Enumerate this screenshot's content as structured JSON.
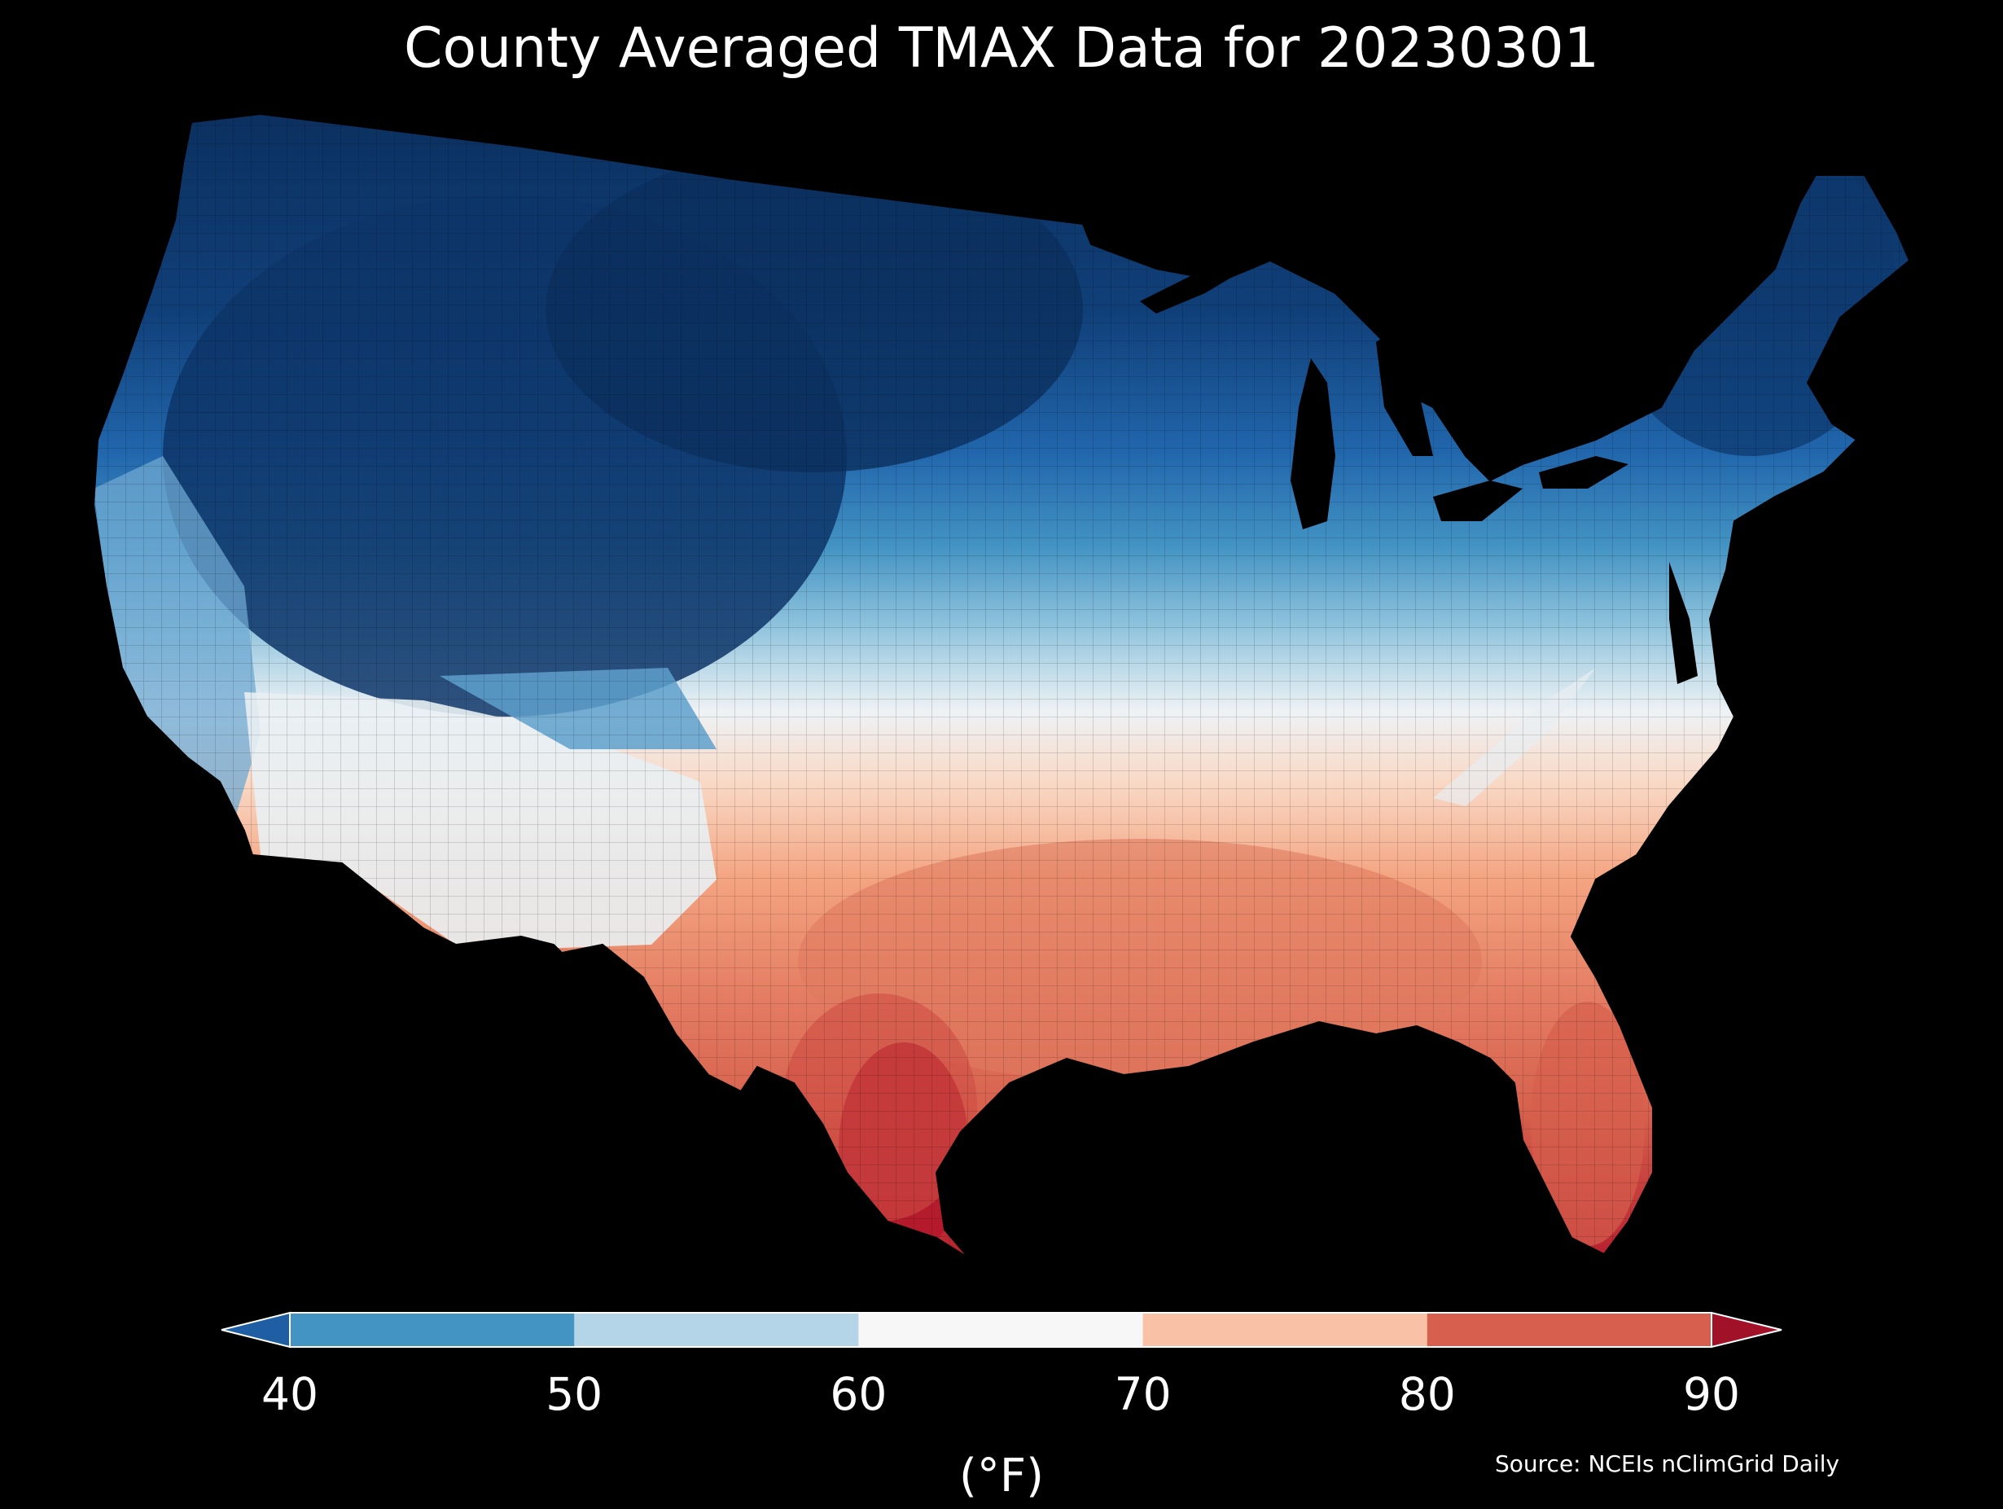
{
  "title": "County Averaged TMAX Data for 20230301",
  "source": "Source: NCEIs nClimGrid Daily",
  "legend": {
    "unit": "(°F)",
    "ticks": [
      "40",
      "50",
      "60",
      "70",
      "80",
      "90"
    ],
    "bins": [
      {
        "range": "<40",
        "color": "#1f5ea3"
      },
      {
        "range": "40-50",
        "color": "#4393c3"
      },
      {
        "range": "50-60",
        "color": "#b4d5e8"
      },
      {
        "range": "60-70",
        "color": "#f7f7f7"
      },
      {
        "range": "70-80",
        "color": "#f9c1a5"
      },
      {
        "range": "80-90",
        "color": "#d6604d"
      },
      {
        "range": ">90",
        "color": "#a11228"
      }
    ]
  },
  "map": {
    "region": "Contiguous United States",
    "variable": "TMAX",
    "date": "20230301",
    "background_color": "#000000",
    "border_color": "#000000"
  }
}
